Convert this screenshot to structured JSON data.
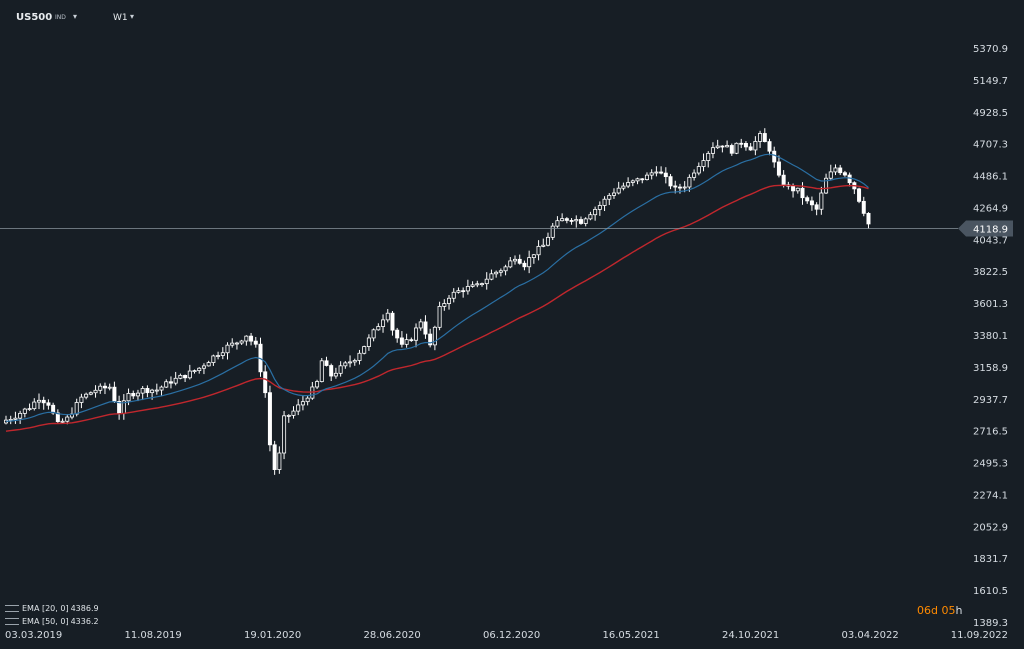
{
  "header": {
    "symbol": "US500",
    "symbol_type": "IND",
    "timeframe": "W1"
  },
  "indicators": [
    {
      "label": "EMA [20, 0]",
      "value": "4386.9",
      "color": "#2a6fa3"
    },
    {
      "label": "EMA [50, 0]",
      "value": "4336.2",
      "color": "#c0272d"
    }
  ],
  "countdown": {
    "days": "06",
    "day_unit": "d",
    "hours": "05",
    "hour_unit": "h"
  },
  "colors": {
    "background": "#171e25",
    "candle": "#ffffff",
    "ema20": "#2a6fa3",
    "ema50": "#c0272d",
    "axis_text": "#d7dde3",
    "price_tag": "#4a5561"
  },
  "chart_data": {
    "type": "candlestick",
    "symbol": "US500",
    "timeframe": "W1",
    "ylim": [
      1389.3,
      5480
    ],
    "y_ticks": [
      "5370.9",
      "5149.7",
      "4928.5",
      "4707.3",
      "4486.1",
      "4264.9",
      "4043.7",
      "3822.5",
      "3601.3",
      "3380.1",
      "3158.9",
      "2937.7",
      "2716.5",
      "2495.3",
      "2274.1",
      "2052.9",
      "1831.7",
      "1610.5",
      "1389.3"
    ],
    "x_tick_labels": [
      "03.03.2019",
      "11.08.2019",
      "19.01.2020",
      "28.06.2020",
      "06.12.2020",
      "16.05.2021",
      "24.10.2021",
      "03.04.2022",
      "11.09.2022"
    ],
    "current_price": "4118.9",
    "anchors": [
      {
        "i": 0,
        "v": 2790
      },
      {
        "i": 2,
        "v": 2820
      },
      {
        "i": 5,
        "v": 2880
      },
      {
        "i": 7,
        "v": 2945
      },
      {
        "i": 9,
        "v": 2905
      },
      {
        "i": 11,
        "v": 2760
      },
      {
        "i": 13,
        "v": 2800
      },
      {
        "i": 16,
        "v": 2945
      },
      {
        "i": 19,
        "v": 3000
      },
      {
        "i": 22,
        "v": 3020
      },
      {
        "i": 23,
        "v": 2930
      },
      {
        "i": 24,
        "v": 2845
      },
      {
        "i": 26,
        "v": 2965
      },
      {
        "i": 29,
        "v": 3000
      },
      {
        "i": 32,
        "v": 3000
      },
      {
        "i": 35,
        "v": 3060
      },
      {
        "i": 38,
        "v": 3100
      },
      {
        "i": 41,
        "v": 3150
      },
      {
        "i": 44,
        "v": 3230
      },
      {
        "i": 47,
        "v": 3300
      },
      {
        "i": 49,
        "v": 3330
      },
      {
        "i": 51,
        "v": 3380
      },
      {
        "i": 53,
        "v": 3300
      },
      {
        "i": 55,
        "v": 2980
      },
      {
        "i": 56,
        "v": 2620
      },
      {
        "i": 57,
        "v": 2450
      },
      {
        "i": 58,
        "v": 2550
      },
      {
        "i": 59,
        "v": 2800
      },
      {
        "i": 61,
        "v": 2850
      },
      {
        "i": 63,
        "v": 2920
      },
      {
        "i": 65,
        "v": 3000
      },
      {
        "i": 66,
        "v": 3050
      },
      {
        "i": 67,
        "v": 3200
      },
      {
        "i": 69,
        "v": 3100
      },
      {
        "i": 71,
        "v": 3150
      },
      {
        "i": 74,
        "v": 3220
      },
      {
        "i": 77,
        "v": 3350
      },
      {
        "i": 79,
        "v": 3450
      },
      {
        "i": 81,
        "v": 3550
      },
      {
        "i": 82,
        "v": 3420
      },
      {
        "i": 84,
        "v": 3300
      },
      {
        "i": 86,
        "v": 3360
      },
      {
        "i": 88,
        "v": 3480
      },
      {
        "i": 89,
        "v": 3400
      },
      {
        "i": 90,
        "v": 3300
      },
      {
        "i": 92,
        "v": 3560
      },
      {
        "i": 94,
        "v": 3650
      },
      {
        "i": 97,
        "v": 3700
      },
      {
        "i": 100,
        "v": 3720
      },
      {
        "i": 103,
        "v": 3800
      },
      {
        "i": 106,
        "v": 3850
      },
      {
        "i": 108,
        "v": 3925
      },
      {
        "i": 110,
        "v": 3870
      },
      {
        "i": 112,
        "v": 3950
      },
      {
        "i": 114,
        "v": 4000
      },
      {
        "i": 116,
        "v": 4130
      },
      {
        "i": 118,
        "v": 4180
      },
      {
        "i": 120,
        "v": 4190
      },
      {
        "i": 122,
        "v": 4170
      },
      {
        "i": 124,
        "v": 4230
      },
      {
        "i": 126,
        "v": 4280
      },
      {
        "i": 128,
        "v": 4350
      },
      {
        "i": 130,
        "v": 4400
      },
      {
        "i": 133,
        "v": 4440
      },
      {
        "i": 136,
        "v": 4480
      },
      {
        "i": 138,
        "v": 4530
      },
      {
        "i": 140,
        "v": 4460
      },
      {
        "i": 142,
        "v": 4390
      },
      {
        "i": 144,
        "v": 4420
      },
      {
        "i": 146,
        "v": 4520
      },
      {
        "i": 148,
        "v": 4610
      },
      {
        "i": 150,
        "v": 4690
      },
      {
        "i": 152,
        "v": 4700
      },
      {
        "i": 154,
        "v": 4660
      },
      {
        "i": 156,
        "v": 4720
      },
      {
        "i": 158,
        "v": 4680
      },
      {
        "i": 160,
        "v": 4760
      },
      {
        "i": 162,
        "v": 4670
      },
      {
        "i": 164,
        "v": 4470
      },
      {
        "i": 166,
        "v": 4400
      },
      {
        "i": 168,
        "v": 4380
      },
      {
        "i": 170,
        "v": 4300
      },
      {
        "i": 172,
        "v": 4250
      },
      {
        "i": 174,
        "v": 4460
      },
      {
        "i": 176,
        "v": 4540
      },
      {
        "i": 178,
        "v": 4500
      },
      {
        "i": 180,
        "v": 4400
      },
      {
        "i": 182,
        "v": 4240
      },
      {
        "i": 183,
        "v": 4150
      }
    ],
    "series": [
      {
        "name": "EMA [20, 0]",
        "last_value": 4386.9
      },
      {
        "name": "EMA [50, 0]",
        "last_value": 4336.2
      }
    ]
  }
}
